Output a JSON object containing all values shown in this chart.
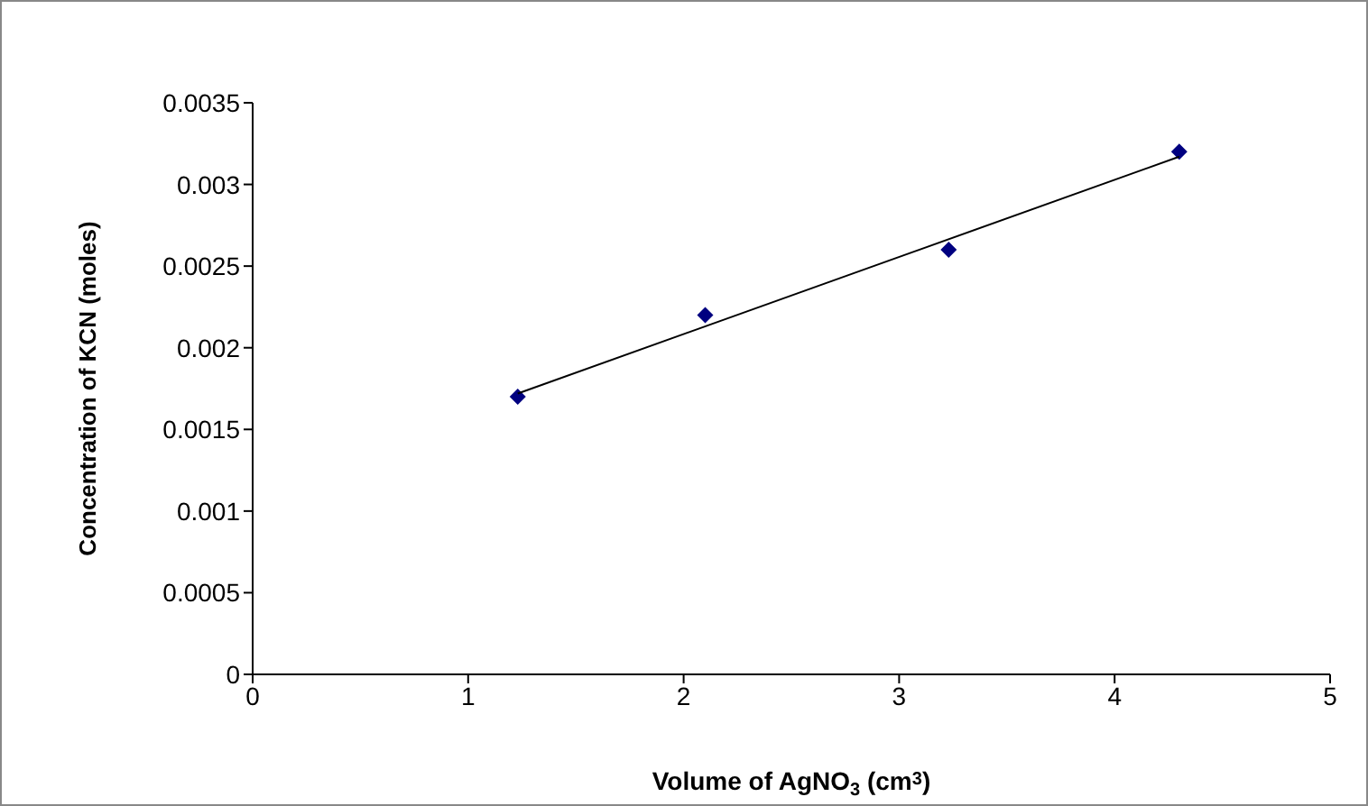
{
  "chart_data": {
    "type": "scatter",
    "xlabel": "Volume of AgNO$_{3}$ (cm$^{3}$)",
    "ylabel": "Concentration of KCN (moles)",
    "xlim": [
      0,
      5
    ],
    "xticks": [
      0,
      1,
      2,
      3,
      4,
      5
    ],
    "ylim": [
      0,
      0.0035
    ],
    "yticks": [
      0,
      0.0005,
      0.001,
      0.0015,
      0.002,
      0.0025,
      0.003,
      0.0035
    ],
    "series": [
      {
        "color": "#000080",
        "marker": "diamond",
        "x": [
          1.23,
          2.1,
          3.23,
          4.3
        ],
        "values": [
          0.0017,
          0.0022,
          0.0026,
          0.0032
        ]
      },
      {
        "type": "line",
        "color": "#000000",
        "marker": "none",
        "x": [
          1.23,
          4.3
        ],
        "values": [
          0.00172,
          0.00317
        ]
      }
    ]
  }
}
